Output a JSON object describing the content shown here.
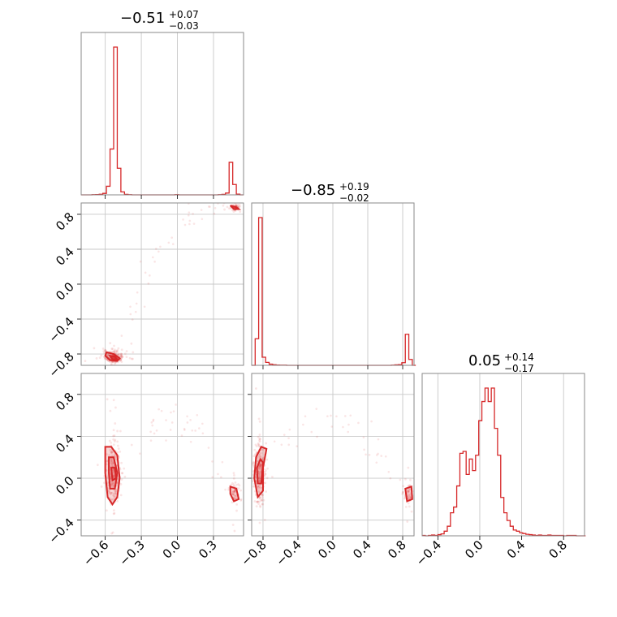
{
  "colors": {
    "accent": "#d62728",
    "frame": "#8a8a8a",
    "grid": "#c8c8c8"
  },
  "titles": [
    {
      "median": "−0.51",
      "plus": "+0.07",
      "minus": "−0.03"
    },
    {
      "median": "−0.85",
      "plus": "+0.19",
      "minus": "−0.02"
    },
    {
      "median": "0.05",
      "plus": "+0.14",
      "minus": "−0.17"
    }
  ],
  "chart_data": [
    {
      "type": "corner",
      "ranges": [
        [
          -0.8,
          0.55
        ],
        [
          -0.93,
          0.93
        ],
        [
          -0.55,
          1.0
        ]
      ],
      "grid": true,
      "histograms": [
        {
          "param": 0,
          "bin_edges": [
            -0.8,
            -0.77,
            -0.74,
            -0.71,
            -0.68,
            -0.65,
            -0.62,
            -0.59,
            -0.56,
            -0.53,
            -0.5,
            -0.47,
            -0.44,
            -0.41,
            -0.38,
            -0.35,
            -0.32,
            -0.29,
            -0.26,
            -0.23,
            -0.2,
            -0.17,
            -0.14,
            -0.11,
            -0.08,
            -0.05,
            -0.02,
            0.01,
            0.04,
            0.07,
            0.1,
            0.13,
            0.16,
            0.19,
            0.22,
            0.25,
            0.28,
            0.31,
            0.34,
            0.37,
            0.4,
            0.43,
            0.46,
            0.49,
            0.52,
            0.55
          ],
          "counts": [
            0,
            0,
            0,
            1,
            2,
            4,
            10,
            58,
            310,
            1000,
            180,
            20,
            3,
            1,
            0,
            0,
            0,
            0,
            0,
            0,
            0,
            0,
            0,
            0,
            0,
            0,
            1,
            0,
            0,
            0,
            0,
            0,
            0,
            0,
            0,
            0,
            0,
            0,
            1,
            3,
            12,
            220,
            70,
            5,
            0
          ],
          "ticks": [],
          "tick_labels": []
        },
        {
          "param": 1,
          "bin_edges": [
            -0.93,
            -0.89,
            -0.85,
            -0.81,
            -0.77,
            -0.73,
            -0.69,
            -0.65,
            -0.61,
            -0.57,
            -0.53,
            -0.49,
            -0.45,
            -0.41,
            -0.37,
            -0.33,
            -0.29,
            -0.25,
            -0.21,
            -0.17,
            -0.13,
            -0.09,
            -0.05,
            -0.01,
            0.03,
            0.07,
            0.11,
            0.15,
            0.19,
            0.23,
            0.27,
            0.31,
            0.35,
            0.39,
            0.43,
            0.47,
            0.51,
            0.55,
            0.59,
            0.63,
            0.67,
            0.71,
            0.75,
            0.79,
            0.83,
            0.87,
            0.91,
            0.95
          ],
          "counts": [
            0,
            180,
            1000,
            55,
            20,
            8,
            4,
            2,
            1,
            1,
            0,
            0,
            0,
            0,
            0,
            0,
            0,
            0,
            0,
            0,
            0,
            0,
            0,
            0,
            0,
            0,
            0,
            0,
            0,
            0,
            0,
            0,
            0,
            0,
            0,
            0,
            0,
            0,
            0,
            0,
            1,
            3,
            5,
            18,
            210,
            40,
            0
          ],
          "ticks": [],
          "tick_labels": []
        },
        {
          "param": 2,
          "bin_edges": [
            -0.55,
            -0.52,
            -0.49,
            -0.46,
            -0.43,
            -0.4,
            -0.37,
            -0.34,
            -0.31,
            -0.28,
            -0.25,
            -0.22,
            -0.19,
            -0.16,
            -0.13,
            -0.1,
            -0.07,
            -0.04,
            -0.01,
            0.02,
            0.05,
            0.08,
            0.11,
            0.14,
            0.17,
            0.2,
            0.23,
            0.26,
            0.29,
            0.32,
            0.35,
            0.38,
            0.41,
            0.44,
            0.47,
            0.5,
            0.53,
            0.56,
            0.59,
            0.62,
            0.65,
            0.68,
            0.71,
            0.74,
            0.77,
            0.8,
            0.83,
            0.86,
            0.89,
            0.92,
            0.95,
            0.98,
            1.01
          ],
          "counts": [
            1,
            0,
            1,
            2,
            1,
            3,
            5,
            12,
            25,
            60,
            75,
            130,
            215,
            220,
            160,
            200,
            170,
            210,
            300,
            350,
            385,
            350,
            385,
            280,
            210,
            100,
            60,
            40,
            25,
            15,
            12,
            8,
            6,
            4,
            3,
            2,
            1,
            2,
            1,
            1,
            2,
            1,
            1,
            1,
            1,
            0,
            1,
            1,
            1,
            0,
            0,
            0
          ],
          "ticks": [
            -0.4,
            0.0,
            0.4,
            0.8
          ],
          "tick_labels": [
            "−0.4",
            "0.0",
            "0.4",
            "0.8"
          ]
        }
      ],
      "scatter_panels": [
        {
          "x_param": 0,
          "y_param": 1,
          "x_ticks": [],
          "x_tick_labels": [],
          "y_ticks": [
            0.8,
            0.4,
            0.0,
            -0.4,
            -0.8
          ],
          "y_tick_labels": [
            "0.8",
            "0.4",
            "0.0",
            "−0.4",
            "−0.8"
          ],
          "modes": [
            {
              "center": [
                -0.53,
                -0.84
              ],
              "spread": [
                0.035,
                0.035
              ],
              "weight": 1.0
            },
            {
              "center": [
                0.48,
                0.88
              ],
              "spread": [
                0.02,
                0.015
              ],
              "weight": 0.3
            }
          ],
          "contours": [
            [
              [
                -0.59,
                -0.78
              ],
              [
                -0.53,
                -0.8
              ],
              [
                -0.48,
                -0.85
              ],
              [
                -0.5,
                -0.88
              ],
              [
                -0.56,
                -0.87
              ],
              [
                -0.6,
                -0.82
              ]
            ],
            [
              [
                -0.56,
                -0.82
              ],
              [
                -0.52,
                -0.83
              ],
              [
                -0.5,
                -0.86
              ],
              [
                -0.54,
                -0.86
              ]
            ],
            [
              [
                0.44,
                0.9
              ],
              [
                0.49,
                0.88
              ],
              [
                0.51,
                0.86
              ],
              [
                0.47,
                0.86
              ]
            ]
          ]
        },
        {
          "x_param": 0,
          "y_param": 2,
          "x_ticks": [
            -0.6,
            -0.3,
            0.0,
            0.3
          ],
          "x_tick_labels": [
            "−0.6",
            "−0.3",
            "0.0",
            "0.3"
          ],
          "y_ticks": [
            0.8,
            0.4,
            0.0,
            -0.4
          ],
          "y_tick_labels": [
            "0.8",
            "0.4",
            "0.0",
            "−0.4"
          ],
          "modes": [
            {
              "center": [
                -0.53,
                0.05
              ],
              "spread": [
                0.025,
                0.14
              ],
              "weight": 1.0
            },
            {
              "center": [
                0.48,
                -0.15
              ],
              "spread": [
                0.02,
                0.05
              ],
              "weight": 0.25
            }
          ],
          "contours": [
            [
              [
                -0.6,
                0.3
              ],
              [
                -0.55,
                0.3
              ],
              [
                -0.5,
                0.22
              ],
              [
                -0.48,
                0.0
              ],
              [
                -0.5,
                -0.18
              ],
              [
                -0.54,
                -0.25
              ],
              [
                -0.58,
                -0.18
              ],
              [
                -0.6,
                0.05
              ]
            ],
            [
              [
                -0.57,
                0.2
              ],
              [
                -0.53,
                0.2
              ],
              [
                -0.5,
                0.05
              ],
              [
                -0.52,
                -0.1
              ],
              [
                -0.56,
                -0.1
              ],
              [
                -0.57,
                0.05
              ]
            ],
            [
              [
                -0.55,
                0.1
              ],
              [
                -0.52,
                0.1
              ],
              [
                -0.51,
                0.0
              ],
              [
                -0.54,
                -0.02
              ]
            ],
            [
              [
                0.44,
                -0.08
              ],
              [
                0.49,
                -0.1
              ],
              [
                0.51,
                -0.2
              ],
              [
                0.47,
                -0.22
              ],
              [
                0.44,
                -0.15
              ]
            ]
          ]
        },
        {
          "x_param": 1,
          "y_param": 2,
          "x_ticks": [
            -0.8,
            -0.4,
            0.0,
            0.4,
            0.8
          ],
          "x_tick_labels": [
            "−0.8",
            "−0.4",
            "0.0",
            "0.4",
            "0.8"
          ],
          "y_ticks": [],
          "y_tick_labels": [],
          "modes": [
            {
              "center": [
                -0.84,
                0.05
              ],
              "spread": [
                0.03,
                0.14
              ],
              "weight": 1.0
            },
            {
              "center": [
                0.87,
                -0.15
              ],
              "spread": [
                0.02,
                0.05
              ],
              "weight": 0.25
            }
          ],
          "contours": [
            [
              [
                -0.82,
                0.3
              ],
              [
                -0.76,
                0.28
              ],
              [
                -0.8,
                0.1
              ],
              [
                -0.8,
                -0.12
              ],
              [
                -0.86,
                -0.18
              ],
              [
                -0.9,
                0.0
              ],
              [
                -0.88,
                0.2
              ]
            ],
            [
              [
                -0.83,
                0.18
              ],
              [
                -0.8,
                0.15
              ],
              [
                -0.82,
                -0.05
              ],
              [
                -0.86,
                -0.05
              ],
              [
                -0.87,
                0.1
              ]
            ],
            [
              [
                0.83,
                -0.1
              ],
              [
                0.9,
                -0.08
              ],
              [
                0.91,
                -0.2
              ],
              [
                0.85,
                -0.22
              ]
            ]
          ]
        }
      ]
    }
  ]
}
